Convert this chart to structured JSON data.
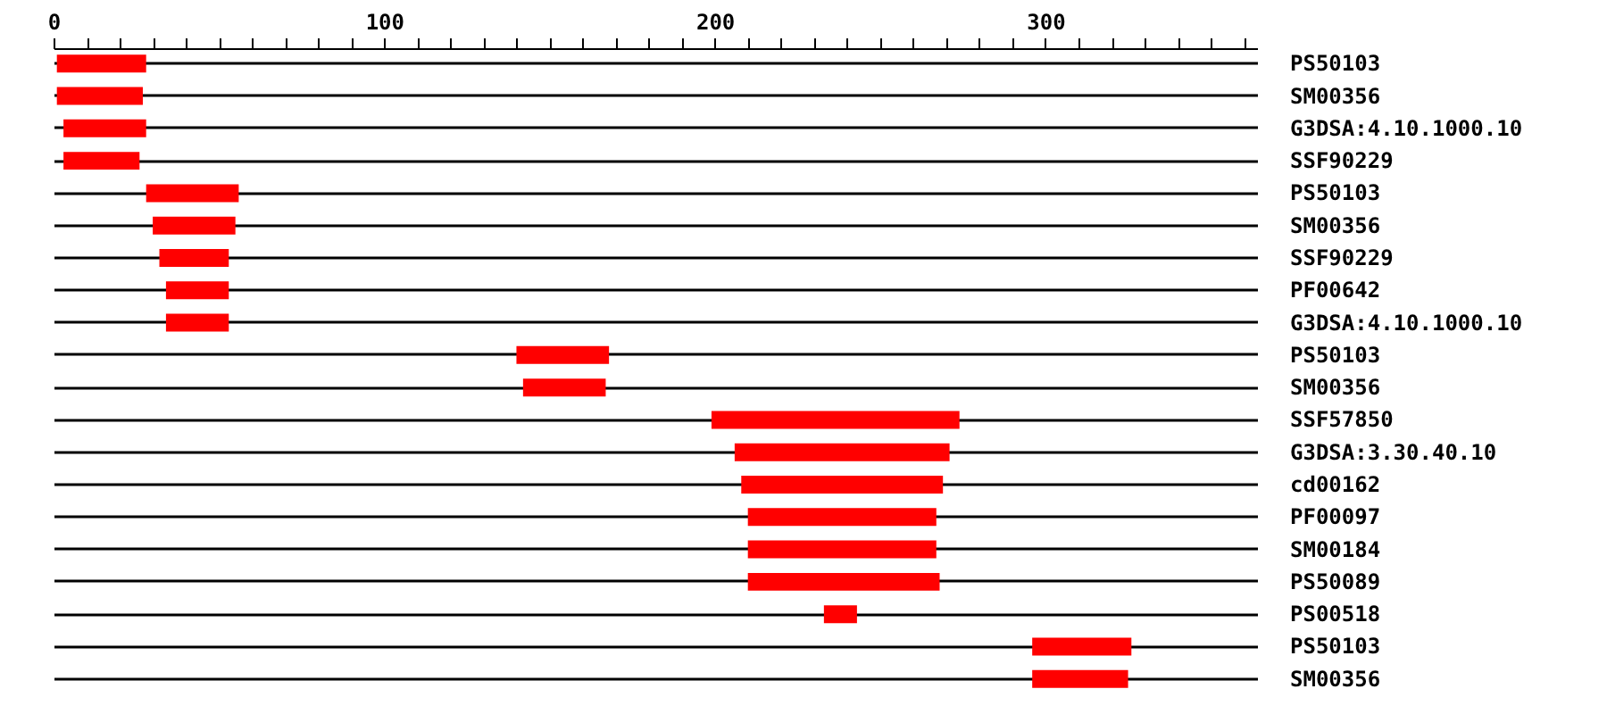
{
  "chart_data": {
    "type": "bar",
    "orientation": "horizontal",
    "categories": [
      "PS50103",
      "SM00356",
      "G3DSA:4.10.1000.10",
      "SSF90229",
      "PS50103",
      "SM00356",
      "SSF90229",
      "PF00642",
      "G3DSA:4.10.1000.10",
      "PS50103",
      "SM00356",
      "SSF57850",
      "G3DSA:3.30.40.10",
      "cd00162",
      "PF00097",
      "SM00184",
      "PS50089",
      "PS00518",
      "PS50103",
      "SM00356"
    ],
    "base": [
      1,
      1,
      3,
      3,
      28,
      30,
      32,
      34,
      34,
      140,
      142,
      199,
      206,
      208,
      210,
      210,
      210,
      233,
      296,
      296
    ],
    "values": [
      27,
      26,
      25,
      23,
      28,
      25,
      21,
      19,
      19,
      28,
      25,
      75,
      65,
      61,
      57,
      57,
      58,
      10,
      30,
      29
    ],
    "color": "#ff0000",
    "xlim": [
      0,
      364
    ],
    "xticks": [
      0,
      {
        "value": 10,
        "label": null
      },
      {
        "value": 20,
        "label": null
      },
      {
        "value": 30,
        "label": null
      },
      {
        "value": 40,
        "label": null
      },
      {
        "value": 50,
        "label": null
      },
      {
        "value": 60,
        "label": null
      },
      {
        "value": 70,
        "label": null
      },
      {
        "value": 80,
        "label": null
      },
      {
        "value": 90,
        "label": null
      },
      100,
      {
        "value": 110,
        "label": null
      },
      {
        "value": 120,
        "label": null
      },
      {
        "value": 130,
        "label": null
      },
      {
        "value": 140,
        "label": null
      },
      {
        "value": 150,
        "label": null
      },
      {
        "value": 160,
        "label": null
      },
      {
        "value": 170,
        "label": null
      },
      {
        "value": 180,
        "label": null
      },
      {
        "value": 190,
        "label": null
      },
      200,
      {
        "value": 210,
        "label": null
      },
      {
        "value": 220,
        "label": null
      },
      {
        "value": 230,
        "label": null
      },
      {
        "value": 240,
        "label": null
      },
      {
        "value": 250,
        "label": null
      },
      {
        "value": 260,
        "label": null
      },
      {
        "value": 270,
        "label": null
      },
      {
        "value": 280,
        "label": null
      },
      {
        "value": 290,
        "label": null
      },
      300,
      {
        "value": 310,
        "label": null
      },
      {
        "value": 320,
        "label": null
      },
      {
        "value": 330,
        "label": null
      },
      {
        "value": 340,
        "label": null
      },
      {
        "value": 350,
        "label": null
      },
      {
        "value": 360,
        "label": null
      }
    ],
    "grid": "y"
  }
}
